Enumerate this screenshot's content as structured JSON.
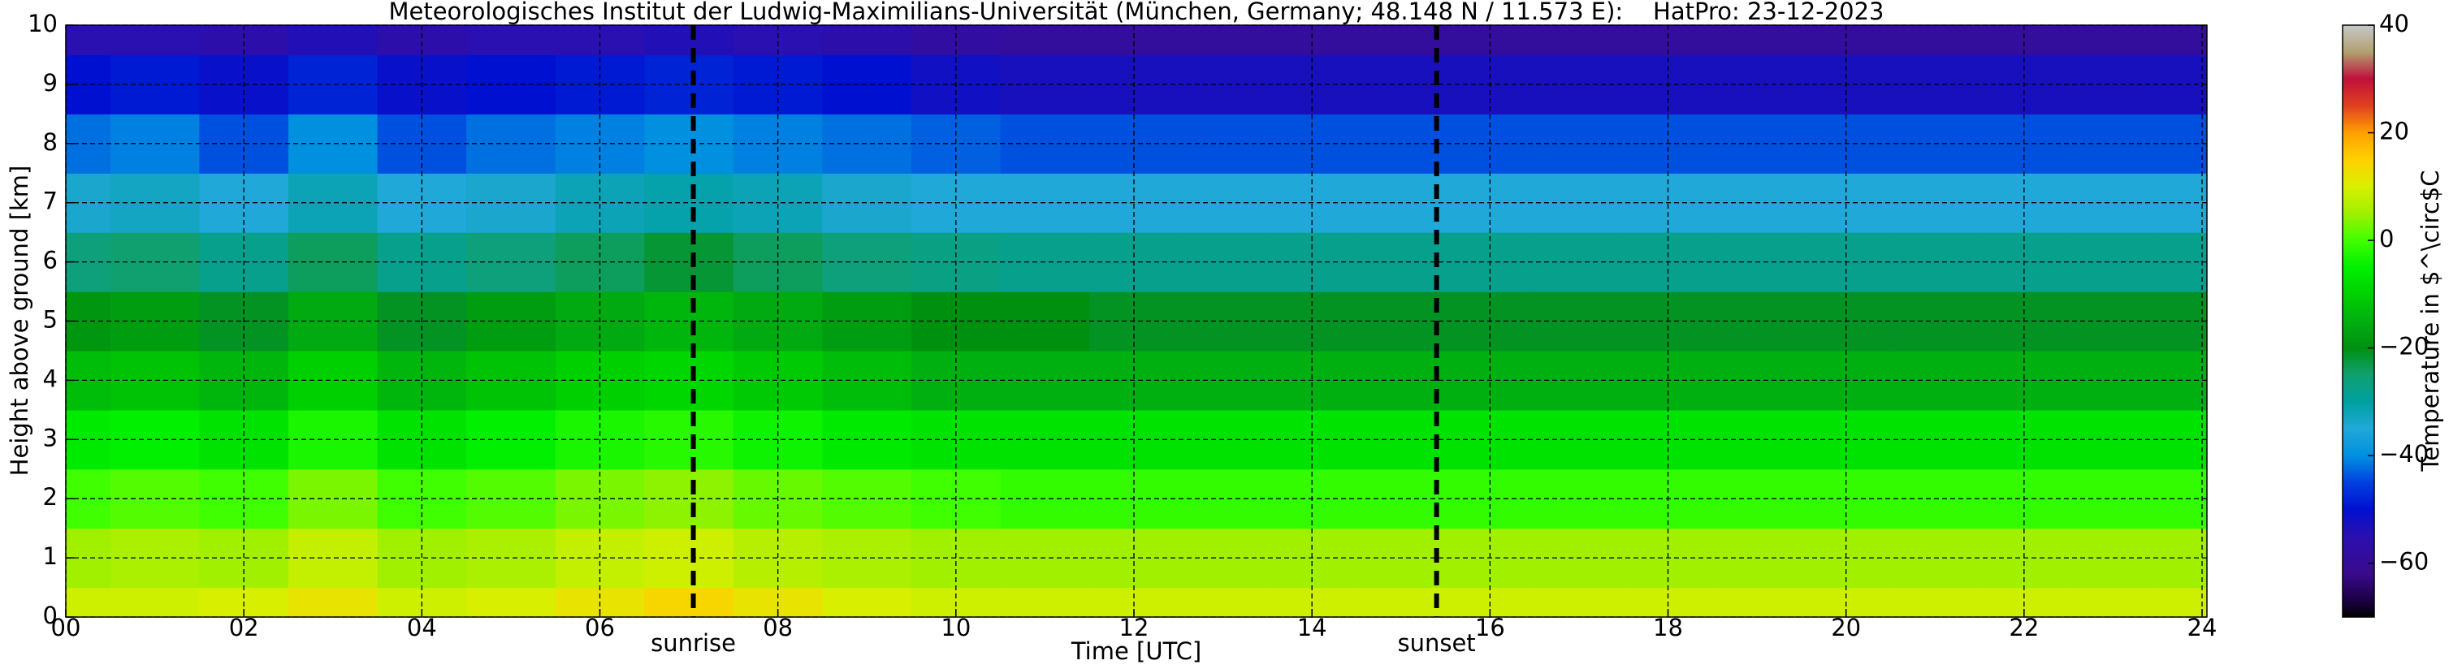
{
  "chart_data": {
    "type": "heatmap",
    "title": "Meteorologisches Institut der Ludwig-Maximilians-Universität (München, Germany; 48.148 N / 11.573 E):    HatPro: 23-12-2023",
    "xlabel": "Time [UTC]",
    "ylabel": "Height above ground [km]",
    "colorbar_label": "Temperature in $^\\circ$C",
    "xlim": [
      0,
      24
    ],
    "ylim": [
      0,
      10
    ],
    "xticks": [
      {
        "value": 0,
        "label": "00"
      },
      {
        "value": 2,
        "label": "02"
      },
      {
        "value": 4,
        "label": "04"
      },
      {
        "value": 6,
        "label": "06"
      },
      {
        "value": 8,
        "label": "08"
      },
      {
        "value": 10,
        "label": "10"
      },
      {
        "value": 12,
        "label": "12"
      },
      {
        "value": 14,
        "label": "14"
      },
      {
        "value": 16,
        "label": "16"
      },
      {
        "value": 18,
        "label": "18"
      },
      {
        "value": 20,
        "label": "20"
      },
      {
        "value": 22,
        "label": "22"
      },
      {
        "value": 24,
        "label": "24"
      }
    ],
    "yticks": [
      0,
      1,
      2,
      3,
      4,
      5,
      6,
      7,
      8,
      9,
      10
    ],
    "grid": true,
    "clim": [
      -70,
      40
    ],
    "cticks": [
      {
        "value": -60,
        "label": "−60"
      },
      {
        "value": -40,
        "label": "−40"
      },
      {
        "value": -20,
        "label": "−20"
      },
      0,
      20,
      40
    ],
    "colorscale": [
      [
        -70,
        "#000000"
      ],
      [
        -67,
        "#1a0040"
      ],
      [
        -62,
        "#3a0a8c"
      ],
      [
        -55,
        "#2a10b0"
      ],
      [
        -50,
        "#0010d0"
      ],
      [
        -45,
        "#0040e0"
      ],
      [
        -40,
        "#0090e0"
      ],
      [
        -35,
        "#20a8d8"
      ],
      [
        -30,
        "#00a0a0"
      ],
      [
        -25,
        "#10a070"
      ],
      [
        -20,
        "#009010"
      ],
      [
        -15,
        "#00b010"
      ],
      [
        -10,
        "#00d000"
      ],
      [
        -5,
        "#00f000"
      ],
      [
        0,
        "#40ff00"
      ],
      [
        5,
        "#a0f000"
      ],
      [
        10,
        "#d8f000"
      ],
      [
        15,
        "#ffd000"
      ],
      [
        20,
        "#ffa000"
      ],
      [
        25,
        "#e04020"
      ],
      [
        30,
        "#c0103a"
      ],
      [
        35,
        "#b0a070"
      ],
      [
        40,
        "#c8c8c8"
      ]
    ],
    "x": [
      0,
      1,
      2,
      3,
      4,
      5,
      6,
      7,
      8,
      9,
      10,
      11,
      12,
      13,
      14,
      15,
      16,
      17,
      18,
      19,
      20,
      21,
      22,
      23,
      24
    ],
    "heights": [
      0,
      1,
      2,
      3,
      4,
      5,
      6,
      7,
      8,
      9,
      10
    ],
    "values": [
      [
        9,
        9,
        10,
        12,
        9,
        10,
        12,
        14,
        12,
        10,
        9,
        9,
        9,
        9,
        9,
        9,
        9,
        9,
        9,
        9,
        9,
        9,
        9,
        9,
        9
      ],
      [
        5,
        6,
        5,
        8,
        5,
        6,
        8,
        9,
        7,
        6,
        5,
        5,
        5,
        5,
        5,
        5,
        5,
        5,
        5,
        5,
        5,
        5,
        5,
        5,
        5
      ],
      [
        0,
        1,
        0,
        3,
        0,
        1,
        3,
        4,
        2,
        1,
        0,
        -1,
        -1,
        -1,
        -1,
        -1,
        -1,
        -1,
        -1,
        -1,
        -1,
        -1,
        -1,
        -1,
        -1
      ],
      [
        -6,
        -5,
        -7,
        -3,
        -7,
        -5,
        -3,
        -2,
        -4,
        -6,
        -7,
        -7,
        -7,
        -7,
        -7,
        -7,
        -7,
        -7,
        -7,
        -7,
        -7,
        -7,
        -7,
        -7,
        -7
      ],
      [
        -13,
        -12,
        -14,
        -10,
        -14,
        -12,
        -10,
        -9,
        -11,
        -13,
        -15,
        -15,
        -15,
        -15,
        -15,
        -15,
        -15,
        -15,
        -15,
        -15,
        -15,
        -15,
        -15,
        -15,
        -15
      ],
      [
        -19,
        -18,
        -21,
        -16,
        -21,
        -18,
        -16,
        -14,
        -16,
        -18,
        -20,
        -20,
        -21,
        -21,
        -21,
        -21,
        -21,
        -21,
        -21,
        -21,
        -21,
        -21,
        -21,
        -21,
        -21
      ],
      [
        -26,
        -25,
        -28,
        -24,
        -28,
        -26,
        -24,
        -22,
        -24,
        -26,
        -27,
        -28,
        -28,
        -28,
        -28,
        -28,
        -28,
        -28,
        -28,
        -28,
        -28,
        -28,
        -28,
        -28,
        -28
      ],
      [
        -34,
        -33,
        -35,
        -32,
        -35,
        -34,
        -32,
        -31,
        -32,
        -34,
        -35,
        -35,
        -35,
        -35,
        -35,
        -35,
        -35,
        -35,
        -35,
        -35,
        -35,
        -35,
        -35,
        -35,
        -35
      ],
      [
        -42,
        -41,
        -44,
        -40,
        -44,
        -42,
        -41,
        -40,
        -41,
        -42,
        -43,
        -44,
        -44,
        -44,
        -44,
        -44,
        -44,
        -44,
        -44,
        -44,
        -44,
        -44,
        -44,
        -44,
        -44
      ],
      [
        -50,
        -49,
        -51,
        -48,
        -51,
        -50,
        -49,
        -48,
        -49,
        -50,
        -52,
        -53,
        -53,
        -53,
        -53,
        -53,
        -53,
        -53,
        -53,
        -53,
        -53,
        -53,
        -53,
        -53,
        -53
      ],
      [
        -55,
        -55,
        -56,
        -54,
        -56,
        -55,
        -55,
        -54,
        -55,
        -56,
        -58,
        -59,
        -59,
        -59,
        -59,
        -59,
        -59,
        -59,
        -59,
        -59,
        -59,
        -59,
        -59,
        -59,
        -59
      ]
    ],
    "annotations": [
      {
        "x": 7.05,
        "label": "sunrise"
      },
      {
        "x": 15.4,
        "label": "sunset"
      }
    ]
  }
}
